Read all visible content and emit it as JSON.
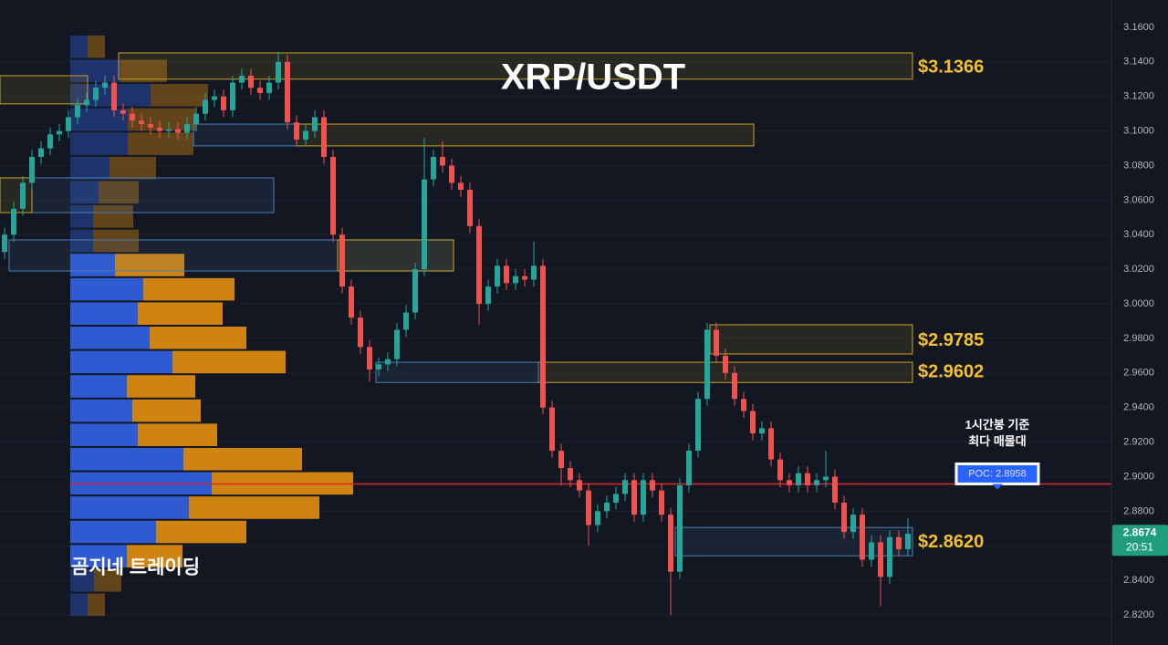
{
  "chart_data": {
    "type": "candlestick",
    "title": "XRP/USDT",
    "watermark": "곰지네 트레이딩",
    "open": [
      3.03,
      3.04,
      3.055,
      3.07,
      3.085,
      3.09,
      3.098,
      3.1,
      3.108,
      3.115,
      3.118,
      3.125,
      3.128,
      3.112,
      3.11,
      3.106,
      3.104,
      3.102,
      3.1,
      3.101,
      3.099,
      3.104,
      3.11,
      3.118,
      3.12,
      3.112,
      3.128,
      3.132,
      3.125,
      3.122,
      3.128,
      3.14,
      3.105,
      3.095,
      3.1,
      3.108,
      3.085,
      3.04,
      3.01,
      2.992,
      2.975,
      2.962,
      2.965,
      2.968,
      2.985,
      2.995,
      3.02,
      3.072,
      3.085,
      3.08,
      3.07,
      3.066,
      3.045,
      3.0,
      3.01,
      3.022,
      3.012,
      3.016,
      3.014,
      3.022,
      2.94,
      2.915,
      2.905,
      2.898,
      2.892,
      2.872,
      2.88,
      2.885,
      2.89,
      2.898,
      2.878,
      2.898,
      2.892,
      2.878,
      2.845,
      2.895,
      2.915,
      2.945,
      2.985,
      2.97,
      2.96,
      2.945,
      2.938,
      2.925,
      2.928,
      2.91,
      2.898,
      2.895,
      2.902,
      2.895,
      2.898,
      2.9,
      2.885,
      2.868,
      2.878,
      2.852,
      2.862,
      2.842,
      2.865,
      2.858
    ],
    "high": [
      3.044,
      3.059,
      3.074,
      3.089,
      3.094,
      3.102,
      3.104,
      3.112,
      3.119,
      3.122,
      3.129,
      3.132,
      3.132,
      3.116,
      3.114,
      3.11,
      3.108,
      3.106,
      3.105,
      3.105,
      3.108,
      3.114,
      3.122,
      3.124,
      3.124,
      3.132,
      3.136,
      3.136,
      3.129,
      3.132,
      3.146,
      3.144,
      3.109,
      3.104,
      3.112,
      3.112,
      3.089,
      3.044,
      3.014,
      2.996,
      2.979,
      2.969,
      2.972,
      2.989,
      2.999,
      3.024,
      3.096,
      3.089,
      3.094,
      3.084,
      3.074,
      3.07,
      3.049,
      3.014,
      3.026,
      3.026,
      3.02,
      3.02,
      3.036,
      3.026,
      2.944,
      2.919,
      2.909,
      2.902,
      2.896,
      2.884,
      2.889,
      2.894,
      2.902,
      2.902,
      2.902,
      2.902,
      2.896,
      2.882,
      2.899,
      2.919,
      2.949,
      2.989,
      2.989,
      2.974,
      2.964,
      2.949,
      2.942,
      2.932,
      2.932,
      2.914,
      2.902,
      2.906,
      2.906,
      2.902,
      2.915,
      2.904,
      2.889,
      2.882,
      2.882,
      2.866,
      2.866,
      2.869,
      2.869,
      2.876
    ],
    "low": [
      3.026,
      3.036,
      3.051,
      3.066,
      3.081,
      3.086,
      3.094,
      3.096,
      3.104,
      3.111,
      3.114,
      3.121,
      3.108,
      3.106,
      3.102,
      3.1,
      3.098,
      3.096,
      3.096,
      3.095,
      3.095,
      3.1,
      3.106,
      3.114,
      3.108,
      3.108,
      3.124,
      3.121,
      3.118,
      3.118,
      3.124,
      3.101,
      3.091,
      3.091,
      3.096,
      3.081,
      3.036,
      3.006,
      2.988,
      2.971,
      2.955,
      2.958,
      2.961,
      2.964,
      2.981,
      2.991,
      3.016,
      3.068,
      3.076,
      3.066,
      3.062,
      3.041,
      2.988,
      2.996,
      3.006,
      3.008,
      3.008,
      3.01,
      3.01,
      2.936,
      2.911,
      2.895,
      2.894,
      2.888,
      2.86,
      2.868,
      2.876,
      2.881,
      2.886,
      2.874,
      2.874,
      2.888,
      2.874,
      2.82,
      2.841,
      2.891,
      2.911,
      2.941,
      2.966,
      2.956,
      2.941,
      2.934,
      2.921,
      2.921,
      2.906,
      2.894,
      2.891,
      2.891,
      2.891,
      2.891,
      2.894,
      2.881,
      2.864,
      2.864,
      2.848,
      2.848,
      2.825,
      2.838,
      2.854,
      2.854
    ],
    "close": [
      3.04,
      3.055,
      3.07,
      3.085,
      3.09,
      3.098,
      3.1,
      3.108,
      3.115,
      3.118,
      3.125,
      3.128,
      3.112,
      3.11,
      3.106,
      3.104,
      3.102,
      3.1,
      3.101,
      3.099,
      3.104,
      3.11,
      3.118,
      3.12,
      3.112,
      3.128,
      3.132,
      3.125,
      3.122,
      3.128,
      3.14,
      3.105,
      3.095,
      3.1,
      3.108,
      3.085,
      3.04,
      3.01,
      2.992,
      2.975,
      2.962,
      2.965,
      2.968,
      2.985,
      2.995,
      3.02,
      3.072,
      3.085,
      3.08,
      3.07,
      3.066,
      3.045,
      3.0,
      3.01,
      3.022,
      3.012,
      3.016,
      3.014,
      3.022,
      2.94,
      2.915,
      2.905,
      2.898,
      2.892,
      2.872,
      2.88,
      2.885,
      2.89,
      2.898,
      2.878,
      2.898,
      2.892,
      2.878,
      2.845,
      2.895,
      2.915,
      2.945,
      2.985,
      2.97,
      2.96,
      2.945,
      2.938,
      2.925,
      2.928,
      2.91,
      2.898,
      2.895,
      2.902,
      2.895,
      2.898,
      2.9,
      2.885,
      2.868,
      2.878,
      2.852,
      2.862,
      2.842,
      2.865,
      2.858,
      2.867
    ],
    "up_color": "#26a69a",
    "down_color": "#ef5350",
    "ylim": [
      2.8026,
      3.1758
    ],
    "yticks": [
      {
        "value": 3.16,
        "label": "3.1600"
      },
      {
        "value": 3.14,
        "label": "3.1400"
      },
      {
        "value": 3.12,
        "label": "3.1200"
      },
      {
        "value": 3.1,
        "label": "3.1000"
      },
      {
        "value": 3.08,
        "label": "3.0800"
      },
      {
        "value": 3.06,
        "label": "3.0600"
      },
      {
        "value": 3.04,
        "label": "3.0400"
      },
      {
        "value": 3.02,
        "label": "3.0200"
      },
      {
        "value": 3.0,
        "label": "3.0000"
      },
      {
        "value": 2.98,
        "label": "2.9800"
      },
      {
        "value": 2.96,
        "label": "2.9600"
      },
      {
        "value": 2.94,
        "label": "2.9400"
      },
      {
        "value": 2.92,
        "label": "2.9200"
      },
      {
        "value": 2.9,
        "label": "2.9000"
      },
      {
        "value": 2.88,
        "label": "2.8800"
      },
      {
        "value": 2.86,
        "label": "2.8600"
      },
      {
        "value": 2.84,
        "label": "2.8400"
      },
      {
        "value": 2.82,
        "label": "2.8200"
      }
    ],
    "grid": true,
    "volume_profile": {
      "price_range": [
        3.1558,
        2.8189
      ],
      "value_area": [
        2.8464,
        3.0291
      ],
      "buy_color": "#2f5fdc",
      "sell_color": "#d98a12",
      "buy": [
        19,
        55,
        88,
        63,
        63,
        43,
        31,
        25,
        25,
        49,
        80,
        74,
        87,
        112,
        62,
        68,
        74,
        124,
        155,
        130,
        94,
        62,
        26,
        19
      ],
      "sell": [
        19,
        51,
        63,
        75,
        72,
        51,
        44,
        44,
        50,
        76,
        100,
        93,
        106,
        124,
        75,
        75,
        87,
        130,
        155,
        143,
        99,
        61,
        30,
        19
      ]
    },
    "zones": [
      {
        "top": 3.1452,
        "bottom": 3.13,
        "from": 12.5,
        "to": 99.5,
        "color": "#c9a227",
        "price": {
          "value": 3.1366,
          "label": "$3.1366"
        }
      },
      {
        "top": 3.104,
        "bottom": 3.0914,
        "from": 32,
        "to": 82.1,
        "color": "#c9a227"
      },
      {
        "top": 3.132,
        "bottom": 3.1157,
        "from": -0.5,
        "to": 9.1,
        "color": "#c9a227"
      },
      {
        "top": 3.104,
        "bottom": 3.0914,
        "from": 20.7,
        "to": 32,
        "color": "#4a7fb5"
      },
      {
        "top": 3.0729,
        "bottom": 3.0528,
        "from": 3,
        "to": 29.5,
        "color": "#4a7fb5"
      },
      {
        "top": 3.0729,
        "bottom": 3.0528,
        "from": -0.5,
        "to": 3,
        "color": "#c9a227"
      },
      {
        "top": 3.037,
        "bottom": 3.019,
        "from": 0.5,
        "to": 49.2,
        "color": "#4a7fb5"
      },
      {
        "top": 3.037,
        "bottom": 3.019,
        "from": 36.5,
        "to": 49.2,
        "color": "#c9a227"
      },
      {
        "top": 2.9879,
        "bottom": 2.971,
        "from": 77.3,
        "to": 99.5,
        "color": "#c9a227",
        "price": {
          "value": 2.9785,
          "label": "$2.9785"
        }
      },
      {
        "top": 2.9662,
        "bottom": 2.9545,
        "from": 58.5,
        "to": 99.5,
        "color": "#c9a227",
        "price": {
          "value": 2.9602,
          "label": "$2.9602"
        }
      },
      {
        "top": 2.9662,
        "bottom": 2.9545,
        "from": 40.7,
        "to": 58.5,
        "color": "#4a7fb5"
      },
      {
        "top": 2.8706,
        "bottom": 2.8542,
        "from": 73.5,
        "to": 99.5,
        "color": "#4a7fb5",
        "price": {
          "value": 2.862,
          "label": "$2.8620"
        }
      }
    ],
    "poc": {
      "value": 2.8958,
      "label": "POC: 2.8958",
      "note": [
        "1시간봉 기준",
        "최다 매물대"
      ],
      "color": "#e0262b"
    },
    "last_price": {
      "value": 2.8674,
      "time": "20:51",
      "color": "#1e9e7c"
    }
  }
}
